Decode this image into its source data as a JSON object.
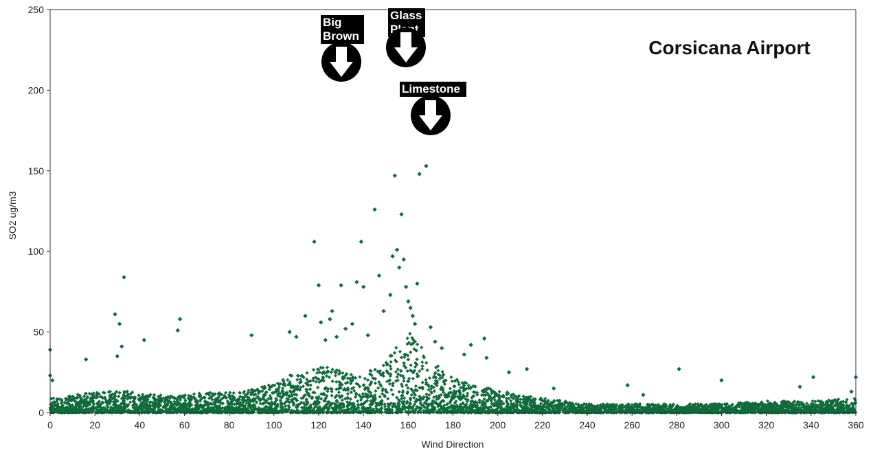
{
  "chart_data": {
    "type": "scatter",
    "title": "Corsicana Airport",
    "xlabel": "Wind Direction",
    "ylabel": "SO2 ug/m3",
    "xlim": [
      0,
      360
    ],
    "ylim": [
      0,
      250
    ],
    "x_ticks": [
      0,
      20,
      40,
      60,
      80,
      100,
      120,
      140,
      160,
      180,
      200,
      220,
      240,
      260,
      280,
      300,
      320,
      340,
      360
    ],
    "y_ticks": [
      0,
      50,
      100,
      150,
      200,
      250
    ],
    "grid": false,
    "marker_color": "#0f6b3a",
    "series": [
      {
        "points": [
          [
            0,
            39
          ],
          [
            0,
            23
          ],
          [
            1,
            20
          ],
          [
            16,
            33
          ],
          [
            29,
            61
          ],
          [
            30,
            35
          ],
          [
            31,
            55
          ],
          [
            32,
            41
          ],
          [
            33,
            84
          ],
          [
            42,
            45
          ],
          [
            57,
            51
          ],
          [
            58,
            58
          ],
          [
            90,
            48
          ],
          [
            107,
            50
          ],
          [
            110,
            47
          ],
          [
            114,
            60
          ],
          [
            118,
            106
          ],
          [
            120,
            79
          ],
          [
            121,
            56
          ],
          [
            123,
            45
          ],
          [
            125,
            58
          ],
          [
            126,
            63
          ],
          [
            128,
            47
          ],
          [
            130,
            79
          ],
          [
            132,
            52
          ],
          [
            135,
            55
          ],
          [
            137,
            81
          ],
          [
            139,
            106
          ],
          [
            140,
            78
          ],
          [
            142,
            48
          ],
          [
            145,
            126
          ],
          [
            147,
            85
          ],
          [
            149,
            63
          ],
          [
            152,
            73
          ],
          [
            153,
            97
          ],
          [
            154,
            147
          ],
          [
            155,
            101
          ],
          [
            156,
            90
          ],
          [
            157,
            123
          ],
          [
            158,
            95
          ],
          [
            159,
            78
          ],
          [
            160,
            69
          ],
          [
            161,
            65
          ],
          [
            162,
            60
          ],
          [
            163,
            55
          ],
          [
            164,
            80
          ],
          [
            165,
            148
          ],
          [
            168,
            153
          ],
          [
            170,
            53
          ],
          [
            172,
            44
          ],
          [
            175,
            40
          ],
          [
            185,
            36
          ],
          [
            188,
            42
          ],
          [
            194,
            46
          ],
          [
            195,
            34
          ],
          [
            205,
            25
          ],
          [
            213,
            27
          ],
          [
            225,
            15
          ],
          [
            258,
            17
          ],
          [
            265,
            11
          ],
          [
            281,
            27
          ],
          [
            300,
            20
          ],
          [
            335,
            16
          ],
          [
            341,
            22
          ],
          [
            358,
            13
          ],
          [
            360,
            22
          ]
        ]
      }
    ],
    "background_density": [
      [
        0,
        5
      ],
      [
        10,
        6
      ],
      [
        20,
        7
      ],
      [
        30,
        8
      ],
      [
        40,
        7
      ],
      [
        50,
        6
      ],
      [
        60,
        6
      ],
      [
        70,
        7
      ],
      [
        80,
        7
      ],
      [
        90,
        8
      ],
      [
        100,
        10
      ],
      [
        110,
        14
      ],
      [
        120,
        16
      ],
      [
        130,
        15
      ],
      [
        140,
        13
      ],
      [
        150,
        18
      ],
      [
        155,
        24
      ],
      [
        160,
        28
      ],
      [
        165,
        24
      ],
      [
        170,
        18
      ],
      [
        180,
        12
      ],
      [
        190,
        9
      ],
      [
        200,
        8
      ],
      [
        210,
        6
      ],
      [
        220,
        5
      ],
      [
        230,
        4
      ],
      [
        240,
        3
      ],
      [
        260,
        3
      ],
      [
        280,
        3
      ],
      [
        300,
        3
      ],
      [
        320,
        4
      ],
      [
        340,
        4
      ],
      [
        360,
        5
      ]
    ],
    "annotations": [
      {
        "label_lines": [
          "Big",
          "Brown"
        ],
        "x": 130
      },
      {
        "label_lines": [
          "Glass",
          "Plant"
        ],
        "x": 160
      },
      {
        "label_lines": [
          "Limestone"
        ],
        "x": 170
      }
    ]
  }
}
